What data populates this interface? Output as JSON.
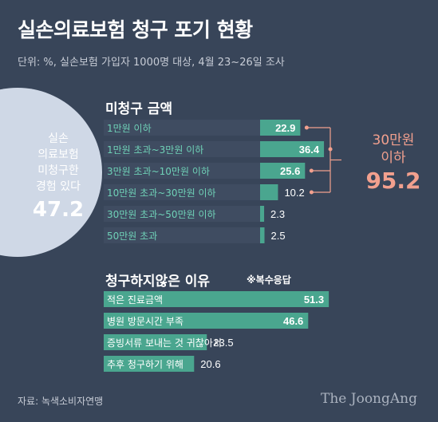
{
  "header": {
    "title": "실손의료보험 청구 포기 현황",
    "subtitle": "단위: %, 실손보험 가입자 1000명 대상, 4월 23~26일 조사"
  },
  "pie": {
    "line1": "실손",
    "line2": "의료보험",
    "line3": "미청구한",
    "line4": "경험 있다",
    "value": "47.2"
  },
  "section1": {
    "title": "미청구 금액",
    "bracket_line1": "30만원",
    "bracket_line2": "이하",
    "bracket_value": "95.2"
  },
  "section2": {
    "title": "청구하지않은 이유",
    "note": "※복수응답"
  },
  "footer": {
    "source": "자료: 녹색소비자연맹",
    "brand": "The JoongAng"
  },
  "colors": {
    "background": "#384559",
    "bar": "#4aa68f",
    "label": "#6fd1b7",
    "pie": "#cfd8e6",
    "accent": "#f2a08e"
  },
  "chart_data": [
    {
      "type": "bar",
      "orientation": "horizontal",
      "title": "미청구 금액",
      "categories": [
        "1만원 이하",
        "1만원 초과~3만원 이하",
        "3만원 초과~10만원 이하",
        "10만원 초과~30만원 이하",
        "30만원 초과~50만원 이하",
        "50만원 초과"
      ],
      "values": [
        22.9,
        36.4,
        25.6,
        10.2,
        2.3,
        2.5
      ],
      "value_labels": [
        "22.9",
        "36.4",
        "25.6",
        "10.2",
        "2.3",
        "2.5"
      ]
    },
    {
      "type": "bar",
      "orientation": "horizontal",
      "title": "청구하지않은 이유",
      "categories": [
        "적은 진료금액",
        "병원 방문시간 부족",
        "증빙서류 보내는 것 귀찮아서",
        "추후 청구하기 위해"
      ],
      "values": [
        51.3,
        46.6,
        23.5,
        20.6
      ],
      "value_labels": [
        "51.3",
        "46.6",
        "23.5",
        "20.6"
      ]
    },
    {
      "type": "pie",
      "values": [
        47.2
      ]
    }
  ]
}
